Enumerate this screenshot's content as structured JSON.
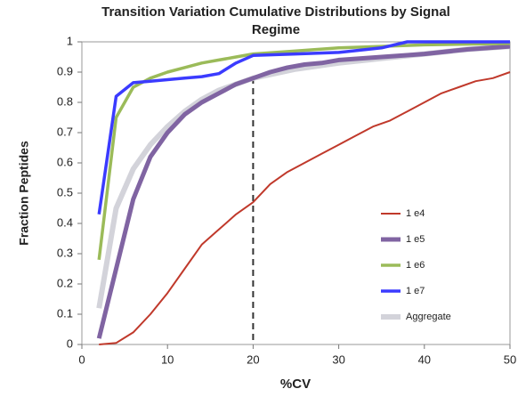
{
  "chart_data": {
    "type": "line",
    "title": "Transition Variation Cumulative Distributions by Signal Regime",
    "x_label": "%CV",
    "y_label": "Fraction Peptides",
    "xlim": [
      0,
      50
    ],
    "xticks": [
      0,
      10,
      20,
      30,
      40,
      50
    ],
    "ylim": [
      0,
      1
    ],
    "yticks": [
      0,
      0.1,
      0.2,
      0.3,
      0.4,
      0.5,
      0.6,
      0.7,
      0.8,
      0.9,
      1
    ],
    "vline_x": 20,
    "legend": "right",
    "series": [
      {
        "name": "1 e4",
        "color": "#c0392b",
        "x": [
          2,
          4,
          6,
          8,
          10,
          12,
          14,
          16,
          18,
          20,
          22,
          24,
          26,
          28,
          30,
          32,
          34,
          36,
          38,
          40,
          42,
          44,
          46,
          48,
          50
        ],
        "values": [
          0,
          0.005,
          0.04,
          0.1,
          0.17,
          0.25,
          0.33,
          0.38,
          0.43,
          0.47,
          0.53,
          0.57,
          0.6,
          0.63,
          0.66,
          0.69,
          0.72,
          0.74,
          0.77,
          0.8,
          0.83,
          0.85,
          0.87,
          0.88,
          0.9
        ]
      },
      {
        "name": "1 e5",
        "color": "#8064a2",
        "x": [
          2,
          4,
          6,
          8,
          10,
          12,
          14,
          16,
          18,
          20,
          22,
          24,
          26,
          28,
          30,
          35,
          40,
          45,
          50
        ],
        "values": [
          0.02,
          0.25,
          0.48,
          0.62,
          0.7,
          0.76,
          0.8,
          0.83,
          0.86,
          0.88,
          0.9,
          0.915,
          0.925,
          0.93,
          0.94,
          0.95,
          0.96,
          0.975,
          0.985
        ]
      },
      {
        "name": "1 e6",
        "color": "#9bbb59",
        "x": [
          2,
          4,
          6,
          8,
          10,
          12,
          14,
          16,
          18,
          20,
          25,
          30,
          35,
          40,
          50
        ],
        "values": [
          0.28,
          0.75,
          0.85,
          0.88,
          0.9,
          0.915,
          0.93,
          0.94,
          0.95,
          0.96,
          0.97,
          0.98,
          0.985,
          0.99,
          0.995
        ]
      },
      {
        "name": "1 e7",
        "color": "#3b3bff",
        "x": [
          2,
          4,
          6,
          8,
          10,
          12,
          14,
          16,
          18,
          20,
          25,
          30,
          35,
          38,
          40,
          50
        ],
        "values": [
          0.43,
          0.82,
          0.865,
          0.87,
          0.875,
          0.88,
          0.885,
          0.895,
          0.93,
          0.955,
          0.96,
          0.965,
          0.98,
          1,
          1,
          1
        ]
      },
      {
        "name": "Aggregate",
        "color": "#d3d3da",
        "x": [
          2,
          4,
          6,
          8,
          10,
          12,
          14,
          16,
          18,
          20,
          25,
          30,
          35,
          40,
          45,
          50
        ],
        "values": [
          0.12,
          0.45,
          0.58,
          0.66,
          0.72,
          0.77,
          0.81,
          0.84,
          0.86,
          0.88,
          0.91,
          0.93,
          0.945,
          0.96,
          0.975,
          0.985
        ]
      }
    ]
  }
}
